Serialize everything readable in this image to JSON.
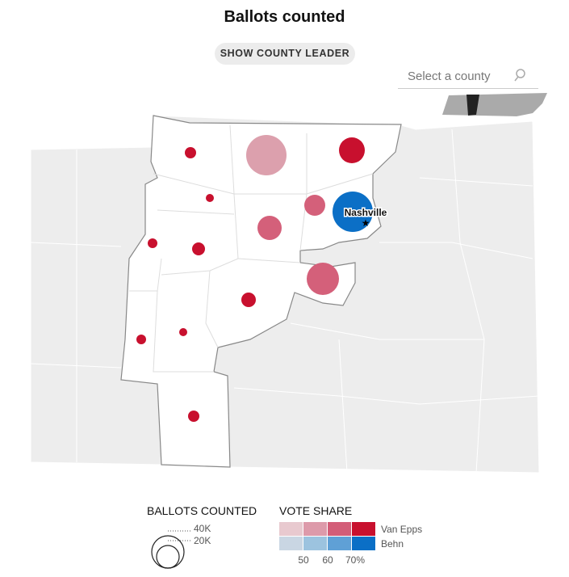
{
  "header": {
    "title": "Ballots counted",
    "button": "SHOW COUNTY LEADER",
    "search_placeholder": "Select a county"
  },
  "map": {
    "city_label": "Nashville"
  },
  "legend": {
    "size": {
      "title": "BALLOTS COUNTED",
      "labels": [
        "40K",
        "20K"
      ]
    },
    "vote_share": {
      "title": "VOTE SHARE",
      "candidates": [
        "Van Epps",
        "Behn"
      ],
      "scale_labels": [
        "50",
        "60",
        "70%"
      ]
    }
  }
}
